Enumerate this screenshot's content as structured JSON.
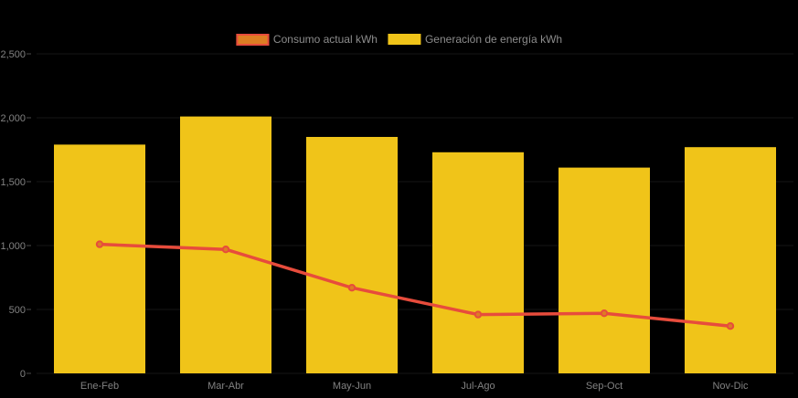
{
  "page": {
    "background": "#000000"
  },
  "legend": {
    "items": [
      {
        "label": "Consumo actual kWh",
        "swatch_fill": "#dd7e23",
        "swatch_border": "#e74c3c"
      },
      {
        "label": "Generación de energía kWh",
        "swatch_fill": "#f0c419",
        "swatch_border": "#f0c419"
      }
    ]
  },
  "chart_data": {
    "type": "bar",
    "subtype": "bar-line-combo",
    "title": "",
    "xlabel": "",
    "ylabel": "",
    "categories": [
      "Ene-Feb",
      "Mar-Abr",
      "May-Jun",
      "Jul-Ago",
      "Sep-Oct",
      "Nov-Dic"
    ],
    "series": [
      {
        "name": "Consumo actual kWh",
        "type": "line",
        "values": [
          1010,
          970,
          670,
          460,
          470,
          370
        ],
        "color": "#e74c3c",
        "marker_fill": "#dd7e23"
      },
      {
        "name": "Generación de energía kWh",
        "type": "bar",
        "values": [
          1790,
          2010,
          1850,
          1730,
          1610,
          1770
        ],
        "color": "#f0c419"
      }
    ],
    "ylim": [
      0,
      2500
    ],
    "yticks": [
      0,
      500,
      1000,
      1500,
      2000,
      2500
    ],
    "ytick_labels": [
      "0",
      "500",
      "1,000",
      "1,500",
      "2,000",
      "2,500"
    ],
    "grid": true,
    "legend_position": "top-center",
    "colors": {
      "background": "#000000",
      "grid": "#161616",
      "tick": "#4d4d4d",
      "axis_text": "#828282",
      "legend_text": "#8c8c8c"
    }
  }
}
